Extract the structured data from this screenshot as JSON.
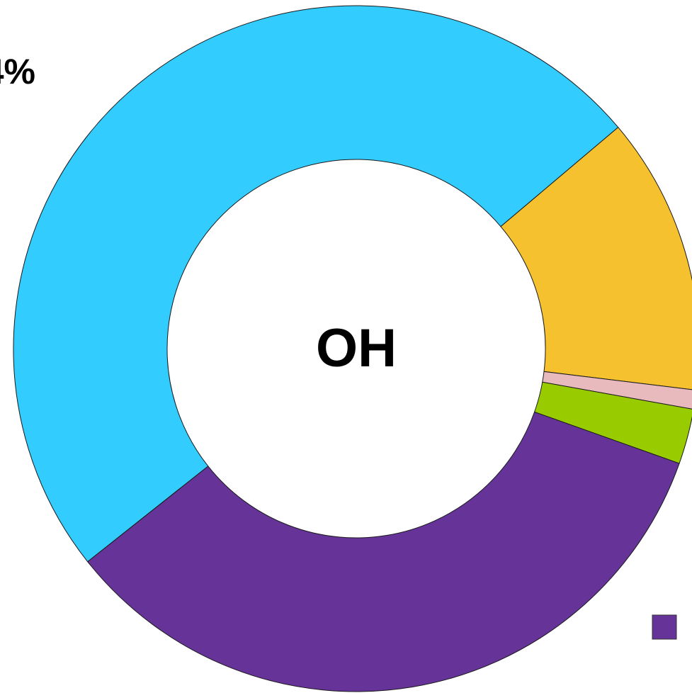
{
  "chart_data": {
    "type": "donut",
    "center_label": "OH",
    "annotation": "4%",
    "categories": [
      null,
      null,
      null,
      null,
      null
    ],
    "values": [
      13.1,
      0.9,
      2.6,
      33.9,
      49.5
    ],
    "colors": [
      "#f5c12f",
      "#e8b9bd",
      "#99cc00",
      "#663399",
      "#33ccff"
    ]
  }
}
